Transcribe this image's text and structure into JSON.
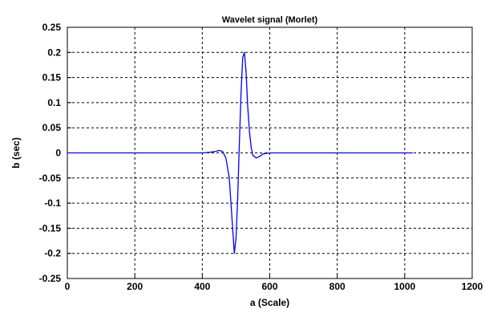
{
  "chart_data": {
    "type": "line",
    "title": "Wavelet signal (Morlet)",
    "xlabel": "a (Scale)",
    "ylabel": "b (sec)",
    "xlim": [
      0,
      1200
    ],
    "ylim": [
      -0.25,
      0.25
    ],
    "xticks": [
      0,
      200,
      400,
      600,
      800,
      1000,
      1200
    ],
    "yticks": [
      -0.25,
      -0.2,
      -0.15,
      -0.1,
      -0.05,
      0,
      0.05,
      0.1,
      0.15,
      0.2,
      0.25
    ],
    "grid": true,
    "series": [
      {
        "color": "#0000ff",
        "x": [
          0,
          400,
          420,
          430,
          440,
          450,
          460,
          470,
          480,
          490,
          495,
          500,
          505,
          510,
          515,
          520,
          525,
          530,
          535,
          540,
          545,
          550,
          560,
          570,
          580,
          600,
          650,
          700,
          800,
          900,
          1024
        ],
        "y": [
          0,
          0,
          0.001,
          0.002,
          0.003,
          0.005,
          0.003,
          -0.01,
          -0.05,
          -0.15,
          -0.2,
          -0.17,
          -0.09,
          0.02,
          0.12,
          0.19,
          0.2,
          0.16,
          0.09,
          0.04,
          0.01,
          -0.005,
          -0.01,
          -0.007,
          -0.002,
          0,
          0,
          0,
          0,
          0,
          0
        ]
      }
    ]
  }
}
